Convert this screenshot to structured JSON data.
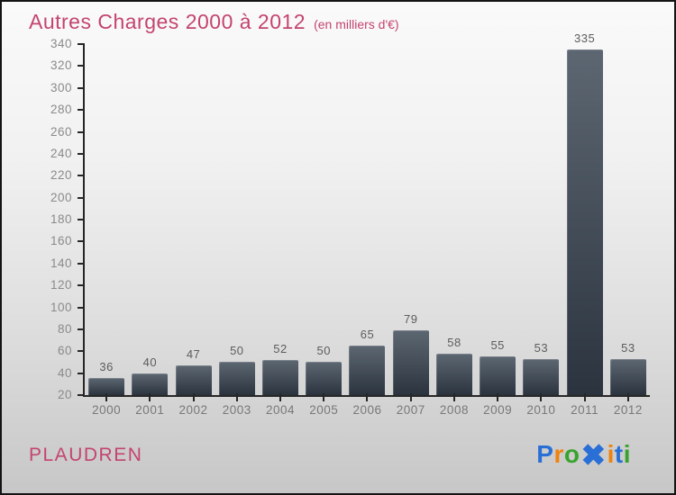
{
  "title": {
    "text": "Autres Charges 2000 à 2012",
    "subtitle": "(en milliers d'€)"
  },
  "chart_data": {
    "type": "bar",
    "title": "Autres Charges 2000 à 2012",
    "subtitle": "(en milliers d'€)",
    "categories": [
      "2000",
      "2001",
      "2002",
      "2003",
      "2004",
      "2005",
      "2006",
      "2007",
      "2008",
      "2009",
      "2010",
      "2011",
      "2012"
    ],
    "values": [
      36,
      40,
      47,
      50,
      52,
      50,
      65,
      79,
      58,
      55,
      53,
      335,
      53
    ],
    "xlabel": "",
    "ylabel": "",
    "ylim": [
      20,
      340
    ],
    "ytick_step": 20,
    "grid": false,
    "bar_gradient": {
      "top": "#5d6772",
      "bottom": "#2b343e"
    }
  },
  "footer": {
    "location": "PLAUDREN",
    "logo": {
      "text": "Proxiti",
      "letters": [
        {
          "ch": "P",
          "color": "#2a6fd6",
          "big": false
        },
        {
          "ch": "r",
          "color": "#f0820f",
          "big": false
        },
        {
          "ch": "o",
          "color": "#37a32c",
          "big": false
        },
        {
          "ch": "✖",
          "color": "#2a6fd6",
          "big": true
        },
        {
          "ch": "i",
          "color": "#f0820f",
          "big": false
        },
        {
          "ch": "t",
          "color": "#2a6fd6",
          "big": false
        },
        {
          "ch": "i",
          "color": "#37a32c",
          "big": false
        }
      ]
    }
  },
  "colors": {
    "accent_pink": "#c4446e",
    "axis": "#262626",
    "tick_label_gray": "#8a8a8a",
    "value_label_gray": "#5c5c5c",
    "bg_top": "#fafafa",
    "bg_bottom": "#c7c7c7"
  }
}
